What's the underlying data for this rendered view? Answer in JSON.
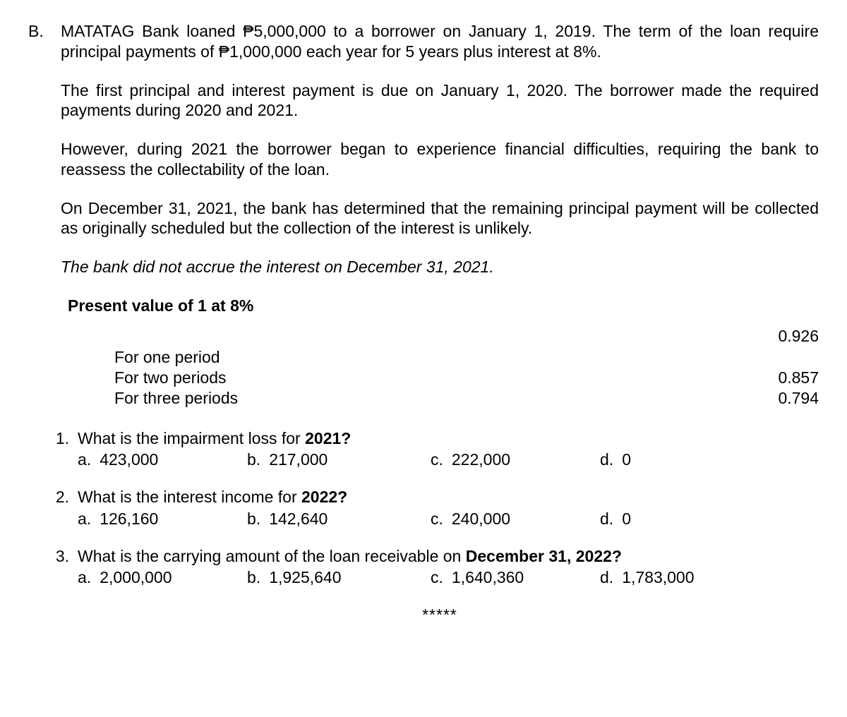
{
  "problem": {
    "marker": "B.",
    "paragraphs": {
      "p1": "MATATAG Bank loaned ₱5,000,000 to a borrower on January 1, 2019. The term of the loan require principal payments of ₱1,000,000 each year for 5 years plus interest at 8%.",
      "p2": "The first principal and interest payment is due on January 1, 2020. The borrower made the required payments during 2020 and 2021.",
      "p3": "However, during 2021 the borrower began to experience financial difficulties, requiring the bank to reassess the collectability of the loan.",
      "p4": "On December 31, 2021, the bank has determined that the remaining principal payment will be collected as originally scheduled but the collection of the interest is unlikely.",
      "p5": "The bank did not accrue the interest on December 31, 2021."
    }
  },
  "pv": {
    "title": "Present value of 1 at 8%",
    "rows": {
      "r1": {
        "label": "For one period",
        "value": "0.926"
      },
      "r2": {
        "label": "For two periods",
        "value": "0.857"
      },
      "r3": {
        "label": "For three periods",
        "value": "0.794"
      }
    }
  },
  "questions": {
    "q1": {
      "marker": "1.",
      "text_pre": "What is the impairment loss for ",
      "text_bold": "2021?",
      "a": {
        "m": "a.",
        "v": "423,000"
      },
      "b": {
        "m": "b.",
        "v": "217,000"
      },
      "c": {
        "m": "c.",
        "v": "222,000"
      },
      "d": {
        "m": "d.",
        "v": "0"
      }
    },
    "q2": {
      "marker": "2.",
      "text_pre": "What is the interest income for ",
      "text_bold": "2022?",
      "a": {
        "m": "a.",
        "v": "126,160"
      },
      "b": {
        "m": "b.",
        "v": "142,640"
      },
      "c": {
        "m": "c.",
        "v": "240,000"
      },
      "d": {
        "m": "d.",
        "v": "0"
      }
    },
    "q3": {
      "marker": "3.",
      "text_pre": "What is the carrying amount of the loan receivable on ",
      "text_bold": "December 31, 2022?",
      "a": {
        "m": "a.",
        "v": "2,000,000"
      },
      "b": {
        "m": "b.",
        "v": "1,925,640"
      },
      "c": {
        "m": "c.",
        "v": "1,640,360"
      },
      "d": {
        "m": "d.",
        "v": "1,783,000"
      }
    }
  },
  "footer": {
    "stars": "*****"
  }
}
